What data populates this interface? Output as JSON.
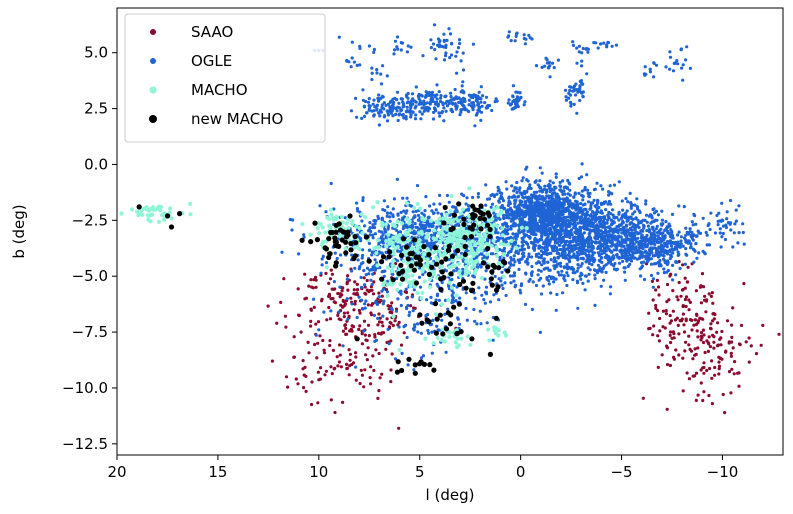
{
  "chart_data": {
    "type": "scatter",
    "title": "",
    "xlabel": "l (deg)",
    "ylabel": "b (deg)",
    "xlim": [
      20,
      -13
    ],
    "ylim": [
      -13,
      7
    ],
    "x_ticks": [
      20,
      15,
      10,
      5,
      0,
      -5,
      -10
    ],
    "x_tick_labels": [
      "20",
      "15",
      "10",
      "5",
      "0",
      "−5",
      "−10"
    ],
    "y_ticks": [
      5.0,
      2.5,
      0.0,
      -2.5,
      -5.0,
      -7.5,
      -10.0,
      -12.5
    ],
    "y_tick_labels": [
      "5.0",
      "2.5",
      "0.0",
      "−2.5",
      "−5.0",
      "−7.5",
      "−10.0",
      "−12.5"
    ],
    "grid": false,
    "legend_position": "top-left",
    "series": [
      {
        "name": "SAAO",
        "color": "#8b0a2e",
        "marker_size": 1.6,
        "clusters": [
          {
            "l": 8.6,
            "b": -6.2,
            "sl": 1.5,
            "sb": 0.9,
            "n": 150
          },
          {
            "l": 8.8,
            "b": -8.8,
            "sl": 1.4,
            "sb": 1.0,
            "n": 110
          },
          {
            "l": 6.8,
            "b": -7.0,
            "sl": 0.7,
            "sb": 0.7,
            "n": 35
          },
          {
            "l": -8.2,
            "b": -6.5,
            "sl": 0.9,
            "sb": 1.0,
            "n": 120
          },
          {
            "l": -9.3,
            "b": -8.6,
            "sl": 1.2,
            "sb": 1.0,
            "n": 110
          }
        ],
        "points": [
          [
            12.3,
            -8.8
          ],
          [
            11.6,
            -9.5
          ],
          [
            -12.8,
            -7.6
          ],
          [
            -9.5,
            -10.7
          ],
          [
            9.2,
            -11.1
          ],
          [
            -12.0,
            -7.2
          ]
        ]
      },
      {
        "name": "OGLE",
        "color": "#1f64d4",
        "marker_size": 1.6,
        "clusters": [
          {
            "l": 4.5,
            "b": -3.2,
            "sl": 2.2,
            "sb": 0.8,
            "n": 900
          },
          {
            "l": -1.0,
            "b": -2.2,
            "sl": 1.1,
            "sb": 0.7,
            "n": 900
          },
          {
            "l": -3.5,
            "b": -3.0,
            "sl": 1.5,
            "sb": 0.8,
            "n": 800
          },
          {
            "l": -6.5,
            "b": -3.5,
            "sl": 1.2,
            "sb": 0.6,
            "n": 450
          },
          {
            "l": -2.0,
            "b": -4.2,
            "sl": 2.0,
            "sb": 0.6,
            "n": 250
          },
          {
            "l": 2.8,
            "b": -5.2,
            "sl": 3.0,
            "sb": 0.8,
            "n": 220
          },
          {
            "l": 5.0,
            "b": -7.0,
            "sl": 2.0,
            "sb": 0.8,
            "n": 90
          },
          {
            "l": -10.2,
            "b": -2.8,
            "sl": 0.5,
            "sb": 0.5,
            "n": 40
          },
          {
            "l": 6.4,
            "b": 2.5,
            "sl": 0.9,
            "sb": 0.3,
            "n": 120
          },
          {
            "l": 4.3,
            "b": 2.8,
            "sl": 0.8,
            "sb": 0.3,
            "n": 120
          },
          {
            "l": 2.5,
            "b": 2.8,
            "sl": 0.6,
            "sb": 0.3,
            "n": 90
          },
          {
            "l": 0.2,
            "b": 2.8,
            "sl": 0.2,
            "sb": 0.2,
            "n": 40
          },
          {
            "l": -2.7,
            "b": 3.3,
            "sl": 0.3,
            "sb": 0.4,
            "n": 40
          },
          {
            "l": 6.0,
            "b": 5.3,
            "sl": 0.3,
            "sb": 0.2,
            "n": 12
          },
          {
            "l": 4.0,
            "b": 5.4,
            "sl": 0.3,
            "sb": 0.3,
            "n": 20
          },
          {
            "l": 3.2,
            "b": 5.0,
            "sl": 0.4,
            "sb": 0.4,
            "n": 20
          },
          {
            "l": 0.0,
            "b": 5.7,
            "sl": 0.3,
            "sb": 0.1,
            "n": 15
          },
          {
            "l": -1.4,
            "b": 4.5,
            "sl": 0.2,
            "sb": 0.2,
            "n": 14
          },
          {
            "l": -3.0,
            "b": 5.0,
            "sl": 0.2,
            "sb": 0.3,
            "n": 14
          },
          {
            "l": -4.2,
            "b": 5.4,
            "sl": 0.3,
            "sb": 0.1,
            "n": 12
          },
          {
            "l": -6.4,
            "b": 4.2,
            "sl": 0.3,
            "sb": 0.2,
            "n": 10
          },
          {
            "l": -7.8,
            "b": 4.5,
            "sl": 0.3,
            "sb": 0.4,
            "n": 18
          },
          {
            "l": 8.0,
            "b": 4.8,
            "sl": 0.6,
            "sb": 0.4,
            "n": 16
          },
          {
            "l": 7.0,
            "b": 4.0,
            "sl": 0.3,
            "sb": 0.2,
            "n": 8
          }
        ],
        "points": [
          [
            10.2,
            5.1
          ],
          [
            10.0,
            5.1
          ],
          [
            9.8,
            5.1
          ],
          [
            11.0,
            -4.0
          ],
          [
            10.0,
            -7.4
          ],
          [
            6.2,
            -8.7
          ],
          [
            9.0,
            -6.6
          ]
        ]
      },
      {
        "name": "MACHO",
        "color": "#8ff5d8",
        "marker_size": 2.1,
        "clusters": [
          {
            "l": 18.0,
            "b": -2.2,
            "sl": 0.6,
            "sb": 0.2,
            "n": 40
          },
          {
            "l": 9.0,
            "b": -2.9,
            "sl": 0.8,
            "sb": 0.5,
            "n": 60
          },
          {
            "l": 4.5,
            "b": -3.6,
            "sl": 1.6,
            "sb": 0.8,
            "n": 200
          },
          {
            "l": 2.5,
            "b": -3.3,
            "sl": 1.0,
            "sb": 0.8,
            "n": 150
          },
          {
            "l": 5.5,
            "b": -5.0,
            "sl": 0.8,
            "sb": 0.5,
            "n": 50
          },
          {
            "l": 3.5,
            "b": -7.8,
            "sl": 0.6,
            "sb": 0.3,
            "n": 20
          },
          {
            "l": 1.0,
            "b": -7.4,
            "sl": 0.3,
            "sb": 0.2,
            "n": 10
          }
        ],
        "points": [
          [
            9.6,
            -4.6
          ],
          [
            6.3,
            -6.8
          ],
          [
            4.2,
            -6.7
          ],
          [
            6.0,
            -8.3
          ]
        ]
      },
      {
        "name": "new MACHO",
        "color": "#000000",
        "marker_size": 2.6,
        "clusters": [
          {
            "l": 9.0,
            "b": -3.4,
            "sl": 0.8,
            "sb": 0.6,
            "n": 40
          },
          {
            "l": 5.6,
            "b": -4.3,
            "sl": 0.8,
            "sb": 0.5,
            "n": 30
          },
          {
            "l": 3.0,
            "b": -4.4,
            "sl": 0.8,
            "sb": 0.8,
            "n": 25
          },
          {
            "l": 2.2,
            "b": -2.6,
            "sl": 0.7,
            "sb": 0.6,
            "n": 30
          },
          {
            "l": 1.2,
            "b": -4.8,
            "sl": 0.4,
            "sb": 0.4,
            "n": 10
          },
          {
            "l": 3.5,
            "b": -7.2,
            "sl": 0.8,
            "sb": 0.5,
            "n": 20
          },
          {
            "l": 5.4,
            "b": -8.8,
            "sl": 0.4,
            "sb": 0.2,
            "n": 10
          }
        ],
        "points": [
          [
            18.9,
            -1.9
          ],
          [
            17.5,
            -2.3
          ],
          [
            17.3,
            -2.8
          ],
          [
            16.9,
            -2.2
          ],
          [
            1.5,
            -8.5
          ],
          [
            4.3,
            -9.2
          ],
          [
            8.1,
            -7.8
          ]
        ]
      }
    ]
  }
}
